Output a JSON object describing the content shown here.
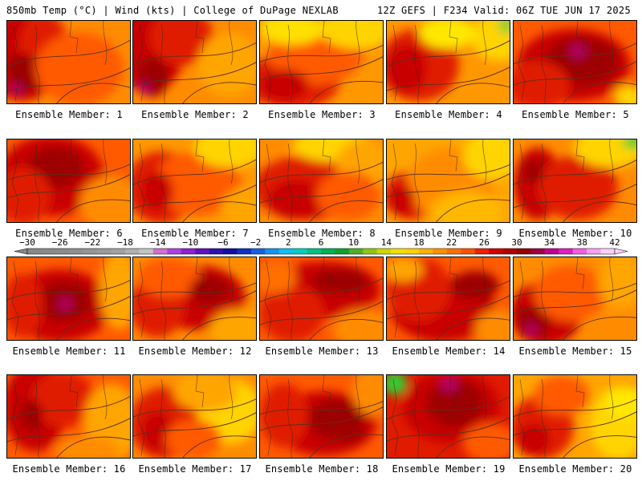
{
  "header": {
    "title_left": "850mb Temp (°C) | Wind (kts) | College of DuPage NEXLAB",
    "title_right": "12Z GEFS | F234 Valid: 06Z TUE JUN 17 2025"
  },
  "panels": [
    {
      "caption": "Ensemble Member: 1",
      "base": "#ff8c00",
      "blobs": [
        [
          "#c80000",
          18,
          45,
          50,
          55
        ],
        [
          "#e01b00",
          45,
          30,
          30,
          40
        ],
        [
          "#9c0000",
          20,
          65,
          18,
          25
        ],
        [
          "#ff5a00",
          90,
          60,
          55,
          45
        ],
        [
          "#b8006a",
          12,
          85,
          6,
          7
        ]
      ]
    },
    {
      "caption": "Ensemble Member: 2",
      "base": "#ff8c00",
      "blobs": [
        [
          "#c80000",
          20,
          30,
          45,
          60
        ],
        [
          "#e01b00",
          60,
          20,
          40,
          35
        ],
        [
          "#9c0000",
          25,
          70,
          18,
          25
        ],
        [
          "#ffa500",
          120,
          55,
          40,
          40
        ],
        [
          "#b8006a",
          14,
          85,
          6,
          8
        ]
      ]
    },
    {
      "caption": "Ensemble Member: 3",
      "base": "#ff9800",
      "blobs": [
        [
          "#e01b00",
          40,
          75,
          60,
          35
        ],
        [
          "#ff5a00",
          70,
          40,
          60,
          40
        ],
        [
          "#ffd400",
          120,
          10,
          45,
          25
        ],
        [
          "#ffe000",
          40,
          10,
          40,
          20
        ],
        [
          "#c80000",
          30,
          80,
          30,
          20
        ]
      ]
    },
    {
      "caption": "Ensemble Member: 4",
      "base": "#ff9800",
      "blobs": [
        [
          "#e01b00",
          40,
          55,
          50,
          45
        ],
        [
          "#ffd400",
          140,
          20,
          35,
          30
        ],
        [
          "#ffe800",
          75,
          15,
          35,
          20
        ],
        [
          "#9acd32",
          150,
          5,
          12,
          12
        ],
        [
          "#c80000",
          25,
          60,
          25,
          30
        ]
      ]
    },
    {
      "caption": "Ensemble Member: 5",
      "base": "#ff5a00",
      "blobs": [
        [
          "#c80000",
          75,
          55,
          70,
          45
        ],
        [
          "#9c0000",
          85,
          50,
          45,
          30
        ],
        [
          "#b8006a",
          80,
          38,
          10,
          8
        ],
        [
          "#e01b00",
          30,
          80,
          40,
          30
        ],
        [
          "#ffd400",
          145,
          95,
          20,
          15
        ]
      ]
    },
    {
      "caption": "Ensemble Member: 6",
      "base": "#ff5a00",
      "blobs": [
        [
          "#c80000",
          55,
          45,
          65,
          50
        ],
        [
          "#9c0000",
          60,
          35,
          35,
          25
        ],
        [
          "#e01b00",
          20,
          70,
          35,
          35
        ],
        [
          "#ff8c00",
          130,
          80,
          40,
          35
        ],
        [
          "#a00000",
          75,
          30,
          15,
          12
        ]
      ]
    },
    {
      "caption": "Ensemble Member: 7",
      "base": "#ff9800",
      "blobs": [
        [
          "#e01b00",
          35,
          60,
          45,
          45
        ],
        [
          "#ff5a00",
          80,
          55,
          55,
          40
        ],
        [
          "#ffd400",
          120,
          10,
          45,
          25
        ],
        [
          "#c80000",
          30,
          65,
          20,
          25
        ],
        [
          "#ffa500",
          140,
          85,
          30,
          25
        ]
      ]
    },
    {
      "caption": "Ensemble Member: 8",
      "base": "#ff8c00",
      "blobs": [
        [
          "#e01b00",
          60,
          60,
          70,
          40
        ],
        [
          "#c80000",
          45,
          75,
          35,
          25
        ],
        [
          "#ffd400",
          90,
          8,
          50,
          20
        ],
        [
          "#ffa500",
          130,
          30,
          35,
          30
        ],
        [
          "#ff5a00",
          110,
          70,
          40,
          30
        ]
      ]
    },
    {
      "caption": "Ensemble Member: 9",
      "base": "#ffa500",
      "blobs": [
        [
          "#e01b00",
          30,
          70,
          35,
          30
        ],
        [
          "#ff8c00",
          80,
          55,
          55,
          45
        ],
        [
          "#ffd400",
          130,
          20,
          35,
          30
        ],
        [
          "#c80000",
          20,
          75,
          15,
          20
        ],
        [
          "#ffb800",
          100,
          90,
          45,
          25
        ]
      ]
    },
    {
      "caption": "Ensemble Member: 10",
      "base": "#ff8c00",
      "blobs": [
        [
          "#c80000",
          30,
          55,
          30,
          45
        ],
        [
          "#e01b00",
          80,
          60,
          50,
          40
        ],
        [
          "#ffd400",
          120,
          10,
          45,
          25
        ],
        [
          "#32cd32",
          150,
          3,
          15,
          8
        ],
        [
          "#9c0000",
          25,
          40,
          12,
          15
        ]
      ]
    },
    {
      "caption": "Ensemble Member: 11",
      "base": "#ff5a00",
      "blobs": [
        [
          "#c80000",
          65,
          60,
          65,
          45
        ],
        [
          "#9c0000",
          70,
          55,
          35,
          25
        ],
        [
          "#b8006a",
          72,
          58,
          8,
          7
        ],
        [
          "#e01b00",
          20,
          60,
          25,
          40
        ],
        [
          "#ffa500",
          140,
          40,
          25,
          50
        ]
      ]
    },
    {
      "caption": "Ensemble Member: 12",
      "base": "#ff8c00",
      "blobs": [
        [
          "#c80000",
          80,
          50,
          60,
          40
        ],
        [
          "#e01b00",
          30,
          60,
          35,
          40
        ],
        [
          "#ff5a00",
          45,
          25,
          40,
          25
        ],
        [
          "#ffa500",
          130,
          90,
          35,
          25
        ],
        [
          "#9c0000",
          95,
          40,
          25,
          18
        ]
      ]
    },
    {
      "caption": "Ensemble Member: 13",
      "base": "#ff5a00",
      "blobs": [
        [
          "#c80000",
          80,
          40,
          70,
          35
        ],
        [
          "#e01b00",
          40,
          70,
          40,
          35
        ],
        [
          "#9c0000",
          100,
          30,
          35,
          15
        ],
        [
          "#ff8c00",
          130,
          90,
          40,
          25
        ],
        [
          "#ff7000",
          20,
          25,
          25,
          20
        ]
      ]
    },
    {
      "caption": "Ensemble Member: 14",
      "base": "#ff5a00",
      "blobs": [
        [
          "#c80000",
          70,
          65,
          65,
          40
        ],
        [
          "#e01b00",
          40,
          40,
          40,
          40
        ],
        [
          "#9c0000",
          110,
          35,
          30,
          18
        ],
        [
          "#ff8c00",
          140,
          90,
          30,
          25
        ],
        [
          "#ffa500",
          20,
          15,
          25,
          15
        ]
      ]
    },
    {
      "caption": "Ensemble Member: 15",
      "base": "#ff8c00",
      "blobs": [
        [
          "#c80000",
          40,
          70,
          45,
          40
        ],
        [
          "#9c0000",
          25,
          80,
          20,
          20
        ],
        [
          "#b8006a",
          22,
          90,
          6,
          8
        ],
        [
          "#ff5a00",
          70,
          45,
          45,
          35
        ],
        [
          "#ffa500",
          135,
          30,
          30,
          35
        ]
      ]
    },
    {
      "caption": "Ensemble Member: 16",
      "base": "#ff5a00",
      "blobs": [
        [
          "#c80000",
          35,
          40,
          40,
          55
        ],
        [
          "#e01b00",
          70,
          30,
          40,
          35
        ],
        [
          "#ffa500",
          130,
          60,
          35,
          50
        ],
        [
          "#ff8c00",
          100,
          95,
          40,
          20
        ],
        [
          "#a00000",
          30,
          50,
          15,
          20
        ]
      ]
    },
    {
      "caption": "Ensemble Member: 17",
      "base": "#ff8c00",
      "blobs": [
        [
          "#e01b00",
          40,
          60,
          45,
          45
        ],
        [
          "#c80000",
          30,
          70,
          20,
          25
        ],
        [
          "#ffd400",
          120,
          45,
          40,
          40
        ],
        [
          "#ffa500",
          90,
          20,
          40,
          25
        ],
        [
          "#ff5a00",
          75,
          80,
          35,
          25
        ]
      ]
    },
    {
      "caption": "Ensemble Member: 18",
      "base": "#ff5a00",
      "blobs": [
        [
          "#c80000",
          80,
          60,
          65,
          40
        ],
        [
          "#9c0000",
          95,
          55,
          35,
          25
        ],
        [
          "#e01b00",
          30,
          50,
          30,
          40
        ],
        [
          "#ff8c00",
          140,
          20,
          25,
          30
        ],
        [
          "#a00000",
          110,
          70,
          20,
          15
        ]
      ]
    },
    {
      "caption": "Ensemble Member: 19",
      "base": "#e01b00",
      "blobs": [
        [
          "#c80000",
          80,
          40,
          60,
          45
        ],
        [
          "#9c0000",
          85,
          35,
          35,
          30
        ],
        [
          "#b8006a",
          78,
          12,
          10,
          8
        ],
        [
          "#32cd32",
          10,
          10,
          15,
          15
        ],
        [
          "#ff5a00",
          130,
          85,
          35,
          25
        ]
      ]
    },
    {
      "caption": "Ensemble Member: 20",
      "base": "#ffa500",
      "blobs": [
        [
          "#e01b00",
          35,
          65,
          40,
          40
        ],
        [
          "#c80000",
          25,
          80,
          20,
          20
        ],
        [
          "#ffd400",
          130,
          60,
          35,
          45
        ],
        [
          "#ffe800",
          140,
          35,
          25,
          20
        ],
        [
          "#ff5a00",
          60,
          25,
          35,
          25
        ]
      ]
    }
  ],
  "colorbar": {
    "labels": [
      "−30",
      "−26",
      "−22",
      "−18",
      "−14",
      "−10",
      "−6",
      "−2",
      "2",
      "6",
      "10",
      "14",
      "18",
      "22",
      "26",
      "30",
      "34",
      "38",
      "42"
    ],
    "colors": [
      "#888888",
      "#8a8a8a",
      "#8c8c8c",
      "#909090",
      "#959595",
      "#9a9a9a",
      "#a2a2a2",
      "#b0b0b0",
      "#c3c3c3",
      "#d070d0",
      "#b040e0",
      "#9020d0",
      "#6010c0",
      "#3010b0",
      "#1010a0",
      "#1030c0",
      "#1860e0",
      "#1890f0",
      "#10c0f0",
      "#00d0c0",
      "#00c080",
      "#00b050",
      "#10a030",
      "#50b020",
      "#90c810",
      "#c8d800",
      "#f0e000",
      "#ffd000",
      "#ffb000",
      "#ff9000",
      "#ff7000",
      "#ff5000",
      "#f02000",
      "#d00000",
      "#b00000",
      "#900000",
      "#a00040",
      "#c00090",
      "#e020c0",
      "#f060e0",
      "#f8a0f0",
      "#ffd0f8"
    ]
  },
  "colors": {
    "background": "#ffffff",
    "panel_border": "#000000",
    "contour": "#5a3020"
  }
}
